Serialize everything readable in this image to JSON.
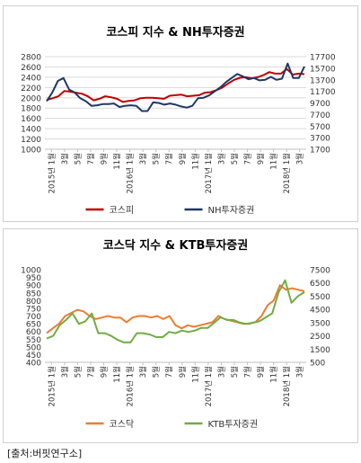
{
  "source_note": "[출처:버핏연구소]",
  "chart_data": [
    {
      "type": "line",
      "title": "코스피 지수 & NH투자증권",
      "x_ticks": [
        "2015년 1월",
        "3월",
        "5월",
        "7월",
        "9월",
        "11월",
        "2016년 1월",
        "3월",
        "5월",
        "7월",
        "9월",
        "11월",
        "2017년 1월",
        "3월",
        "5월",
        "7월",
        "9월",
        "11월",
        "2018년 1월",
        "3월"
      ],
      "y_left": {
        "min": 1000,
        "max": 2800,
        "step": 200,
        "ticks": [
          "2800",
          "2600",
          "2400",
          "2200",
          "2000",
          "1800",
          "1600",
          "1400",
          "1200",
          "1000"
        ]
      },
      "y_right": {
        "min": 1700,
        "max": 17700,
        "step": 2000,
        "ticks": [
          "17700",
          "15700",
          "13700",
          "11700",
          "9700",
          "7700",
          "5700",
          "3700",
          "1700"
        ]
      },
      "grid": true,
      "legend_position": "bottom",
      "series": [
        {
          "name": "코스피",
          "axis": "left",
          "color": "#c00000",
          "values": [
            1960,
            1990,
            2030,
            2130,
            2120,
            2100,
            2080,
            2030,
            1950,
            1980,
            2030,
            2010,
            1980,
            1920,
            1940,
            1950,
            1990,
            2000,
            2000,
            1990,
            1980,
            2040,
            2050,
            2060,
            2030,
            2040,
            2050,
            2100,
            2110,
            2150,
            2200,
            2280,
            2350,
            2390,
            2400,
            2380,
            2400,
            2440,
            2500,
            2470,
            2470,
            2560,
            2450,
            2470,
            2460
          ]
        },
        {
          "name": "NH투자증권",
          "axis": "right",
          "color": "#1f3864",
          "values": [
            10000,
            11500,
            13500,
            14000,
            12000,
            11500,
            10500,
            10000,
            9200,
            9300,
            9500,
            9500,
            9600,
            9000,
            9200,
            9300,
            9200,
            8300,
            8300,
            9800,
            9700,
            9400,
            9600,
            9400,
            9100,
            8900,
            9200,
            10500,
            10600,
            11000,
            11700,
            12400,
            13300,
            14000,
            14700,
            14300,
            13800,
            14000,
            13600,
            13700,
            14200,
            13700,
            13900,
            16500,
            14000,
            14000,
            16000
          ]
        }
      ]
    },
    {
      "type": "line",
      "title": "코스닥 지수 & KTB투자증권",
      "x_ticks": [
        "2015년 1월",
        "3월",
        "5월",
        "7월",
        "9월",
        "11월",
        "2016년 1월",
        "3월",
        "5월",
        "7월",
        "9월",
        "11월",
        "2017년 1월",
        "3월",
        "5월",
        "7월",
        "9월",
        "11월",
        "2018년 1월",
        "3월"
      ],
      "y_left": {
        "min": 400,
        "max": 1000,
        "step": 50,
        "ticks": [
          "1000",
          "950",
          "900",
          "850",
          "800",
          "750",
          "700",
          "650",
          "600",
          "550",
          "500",
          "450",
          "400"
        ]
      },
      "y_right": {
        "min": 500,
        "max": 7500,
        "step": 1000,
        "ticks": [
          "7500",
          "6500",
          "5500",
          "4500",
          "3500",
          "2500",
          "1500",
          "500"
        ]
      },
      "grid": false,
      "legend_position": "bottom",
      "series": [
        {
          "name": "코스닥",
          "axis": "left",
          "color": "#ed7d31",
          "values": [
            590,
            620,
            650,
            700,
            720,
            740,
            730,
            700,
            680,
            690,
            700,
            690,
            690,
            660,
            690,
            700,
            700,
            690,
            700,
            680,
            700,
            640,
            620,
            640,
            630,
            640,
            650,
            660,
            700,
            680,
            670,
            660,
            650,
            650,
            660,
            700,
            770,
            800,
            900,
            870,
            880,
            870,
            860
          ]
        },
        {
          "name": "KTB투자증권",
          "axis": "right",
          "color": "#70ad47",
          "values": [
            2300,
            2500,
            3300,
            3700,
            4200,
            3400,
            3600,
            4200,
            2700,
            2700,
            2500,
            2200,
            2000,
            2000,
            2700,
            2700,
            2600,
            2400,
            2400,
            2800,
            2700,
            2900,
            2800,
            2900,
            3100,
            3100,
            3500,
            3900,
            3700,
            3700,
            3500,
            3400,
            3500,
            3600,
            3900,
            4200,
            5800,
            6700,
            5000,
            5500,
            5800
          ]
        }
      ]
    }
  ]
}
